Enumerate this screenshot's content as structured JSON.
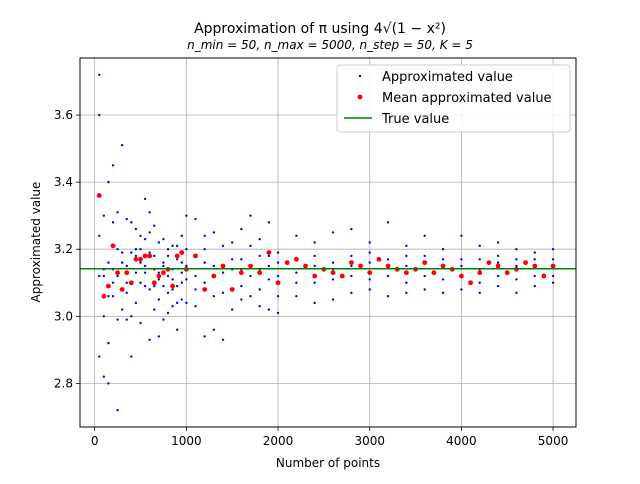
{
  "chart_data": {
    "type": "scatter",
    "title": "Approximation of π using 4√(1 − x²)",
    "subtitle": "n_min = 50, n_max = 5000, n_step = 50, K = 5",
    "xlabel": "Number of points",
    "ylabel": "Approximated value",
    "xlim": [
      -160,
      5250
    ],
    "ylim": [
      2.67,
      3.77
    ],
    "xticks": [
      0,
      1000,
      2000,
      3000,
      4000,
      5000
    ],
    "yticks": [
      2.8,
      3.0,
      3.2,
      3.4,
      3.6
    ],
    "grid": true,
    "legend_position": "top-right",
    "series": [
      {
        "name": "Approximated value",
        "kind": "scatter-small",
        "color": "#0000ff",
        "x": [
          50,
          50,
          50,
          50,
          50,
          100,
          100,
          100,
          100,
          100,
          150,
          150,
          150,
          150,
          150,
          200,
          200,
          200,
          200,
          200,
          250,
          250,
          250,
          250,
          250,
          300,
          300,
          300,
          300,
          300,
          350,
          350,
          350,
          350,
          350,
          400,
          400,
          400,
          400,
          400,
          450,
          450,
          450,
          450,
          450,
          500,
          500,
          500,
          500,
          500,
          550,
          550,
          550,
          550,
          550,
          600,
          600,
          600,
          600,
          600,
          650,
          650,
          650,
          650,
          650,
          700,
          700,
          700,
          700,
          700,
          750,
          750,
          750,
          750,
          750,
          800,
          800,
          800,
          800,
          800,
          850,
          850,
          850,
          850,
          850,
          900,
          900,
          900,
          900,
          900,
          950,
          950,
          950,
          950,
          950,
          1000,
          1000,
          1000,
          1000,
          1000,
          1100,
          1100,
          1100,
          1100,
          1100,
          1200,
          1200,
          1200,
          1200,
          1200,
          1300,
          1300,
          1300,
          1300,
          1300,
          1400,
          1400,
          1400,
          1400,
          1400,
          1500,
          1500,
          1500,
          1500,
          1500,
          1600,
          1600,
          1600,
          1600,
          1600,
          1700,
          1700,
          1700,
          1700,
          1700,
          1800,
          1800,
          1800,
          1800,
          1800,
          1900,
          1900,
          1900,
          1900,
          1900,
          2000,
          2000,
          2000,
          2000,
          2000,
          2200,
          2200,
          2200,
          2200,
          2200,
          2400,
          2400,
          2400,
          2400,
          2400,
          2600,
          2600,
          2600,
          2600,
          2600,
          2800,
          2800,
          2800,
          2800,
          2800,
          3000,
          3000,
          3000,
          3000,
          3000,
          3200,
          3200,
          3200,
          3200,
          3200,
          3400,
          3400,
          3400,
          3400,
          3400,
          3600,
          3600,
          3600,
          3600,
          3600,
          3800,
          3800,
          3800,
          3800,
          3800,
          4000,
          4000,
          4000,
          4000,
          4000,
          4200,
          4200,
          4200,
          4200,
          4200,
          4400,
          4400,
          4400,
          4400,
          4400,
          4600,
          4600,
          4600,
          4600,
          4600,
          4800,
          4800,
          4800,
          4800,
          4800,
          5000,
          5000,
          5000,
          5000,
          5000
        ],
        "y": [
          3.72,
          3.6,
          3.24,
          3.12,
          2.88,
          3.3,
          3.12,
          3.0,
          2.82,
          3.14,
          3.4,
          3.16,
          3.06,
          2.92,
          2.8,
          3.45,
          3.28,
          3.1,
          3.06,
          3.14,
          3.31,
          3.2,
          3.12,
          2.99,
          2.72,
          3.51,
          3.19,
          3.02,
          3.08,
          3.16,
          3.29,
          3.15,
          3.1,
          2.99,
          3.07,
          3.28,
          3.19,
          3.1,
          3.0,
          2.88,
          3.26,
          3.2,
          3.13,
          3.04,
          3.18,
          3.24,
          3.16,
          3.1,
          2.98,
          3.2,
          3.35,
          3.23,
          3.15,
          3.09,
          3.13,
          3.31,
          3.19,
          3.08,
          2.93,
          3.25,
          3.27,
          3.14,
          3.09,
          3.02,
          3.18,
          3.22,
          3.13,
          3.05,
          2.94,
          3.11,
          3.23,
          3.15,
          3.09,
          2.99,
          3.16,
          3.2,
          3.12,
          3.07,
          3.01,
          3.18,
          3.21,
          3.14,
          3.08,
          3.03,
          3.11,
          3.17,
          3.09,
          3.04,
          2.96,
          3.21,
          3.24,
          3.16,
          3.1,
          3.05,
          3.13,
          3.3,
          3.2,
          3.15,
          3.04,
          3.11,
          3.29,
          3.18,
          3.12,
          3.03,
          3.08,
          3.24,
          3.16,
          3.1,
          2.94,
          3.2,
          3.25,
          3.15,
          3.06,
          2.96,
          3.12,
          3.21,
          3.13,
          3.07,
          2.93,
          3.15,
          3.22,
          3.14,
          3.08,
          3.02,
          3.17,
          3.26,
          3.17,
          3.09,
          3.05,
          3.14,
          3.3,
          3.21,
          3.12,
          3.06,
          3.15,
          3.23,
          3.14,
          3.08,
          3.03,
          3.18,
          3.28,
          3.18,
          3.11,
          3.02,
          3.15,
          3.19,
          3.12,
          3.06,
          3.01,
          3.16,
          3.24,
          3.17,
          3.1,
          3.06,
          3.13,
          3.22,
          3.15,
          3.1,
          3.04,
          3.18,
          3.25,
          3.16,
          3.11,
          3.05,
          3.14,
          3.26,
          3.18,
          3.12,
          3.07,
          3.15,
          3.22,
          3.16,
          3.11,
          3.08,
          3.19,
          3.28,
          3.17,
          3.12,
          3.06,
          3.15,
          3.21,
          3.15,
          3.1,
          3.07,
          3.18,
          3.24,
          3.16,
          3.12,
          3.08,
          3.18,
          3.2,
          3.15,
          3.11,
          3.07,
          3.17,
          3.24,
          3.17,
          3.12,
          3.08,
          3.15,
          3.21,
          3.14,
          3.1,
          3.07,
          3.17,
          3.22,
          3.16,
          3.12,
          3.09,
          3.18,
          3.2,
          3.15,
          3.11,
          3.07,
          3.17,
          3.19,
          3.15,
          3.12,
          3.09,
          3.17,
          3.2,
          3.15,
          3.12,
          3.1,
          3.17
        ]
      },
      {
        "name": "Mean approximated value",
        "kind": "scatter",
        "color": "#ff0000",
        "x": [
          50,
          100,
          150,
          200,
          250,
          300,
          350,
          400,
          450,
          500,
          550,
          600,
          650,
          700,
          750,
          800,
          850,
          900,
          950,
          1000,
          1100,
          1200,
          1300,
          1400,
          1500,
          1600,
          1700,
          1800,
          1900,
          2000,
          2100,
          2200,
          2300,
          2400,
          2500,
          2600,
          2700,
          2800,
          2900,
          3000,
          3100,
          3200,
          3300,
          3400,
          3500,
          3600,
          3700,
          3800,
          3900,
          4000,
          4100,
          4200,
          4300,
          4400,
          4500,
          4600,
          4700,
          4800,
          4900,
          5000
        ],
        "y": [
          3.36,
          3.06,
          3.09,
          3.21,
          3.13,
          3.08,
          3.13,
          3.1,
          3.17,
          3.17,
          3.18,
          3.18,
          3.1,
          3.12,
          3.13,
          3.14,
          3.09,
          3.18,
          3.19,
          3.14,
          3.18,
          3.08,
          3.12,
          3.15,
          3.08,
          3.13,
          3.15,
          3.13,
          3.19,
          3.1,
          3.16,
          3.17,
          3.15,
          3.12,
          3.14,
          3.13,
          3.12,
          3.16,
          3.15,
          3.13,
          3.17,
          3.15,
          3.14,
          3.13,
          3.14,
          3.16,
          3.13,
          3.15,
          3.14,
          3.12,
          3.1,
          3.13,
          3.16,
          3.15,
          3.13,
          3.14,
          3.16,
          3.15,
          3.12,
          3.15
        ]
      },
      {
        "name": "True value",
        "kind": "hline",
        "color": "#008000",
        "value": 3.14159
      }
    ]
  }
}
